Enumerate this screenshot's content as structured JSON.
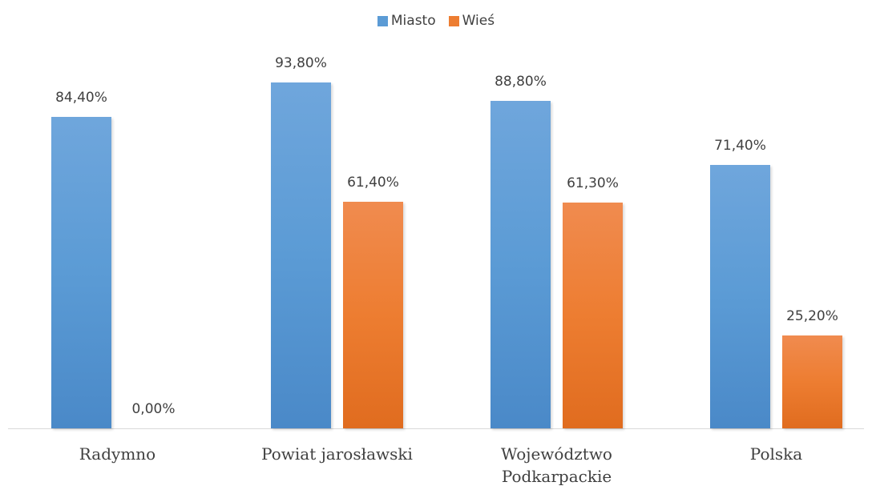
{
  "chart_data": {
    "type": "bar",
    "categories": [
      "Radymno",
      "Powiat jarosławski",
      "Województwo Podkarpackie",
      "Polska"
    ],
    "series": [
      {
        "name": "Miasto",
        "color": "#5b9bd5",
        "values": [
          84.4,
          93.8,
          88.8,
          71.4
        ],
        "value_labels": [
          "84,40%",
          "93,80%",
          "88,80%",
          "71,40%"
        ]
      },
      {
        "name": "Wieś",
        "color": "#ed7d31",
        "values": [
          0,
          61.4,
          61.3,
          25.2
        ],
        "value_labels": [
          "0,00%",
          "61,40%",
          "61,30%",
          "25,20%"
        ]
      }
    ],
    "legend": "top"
  }
}
